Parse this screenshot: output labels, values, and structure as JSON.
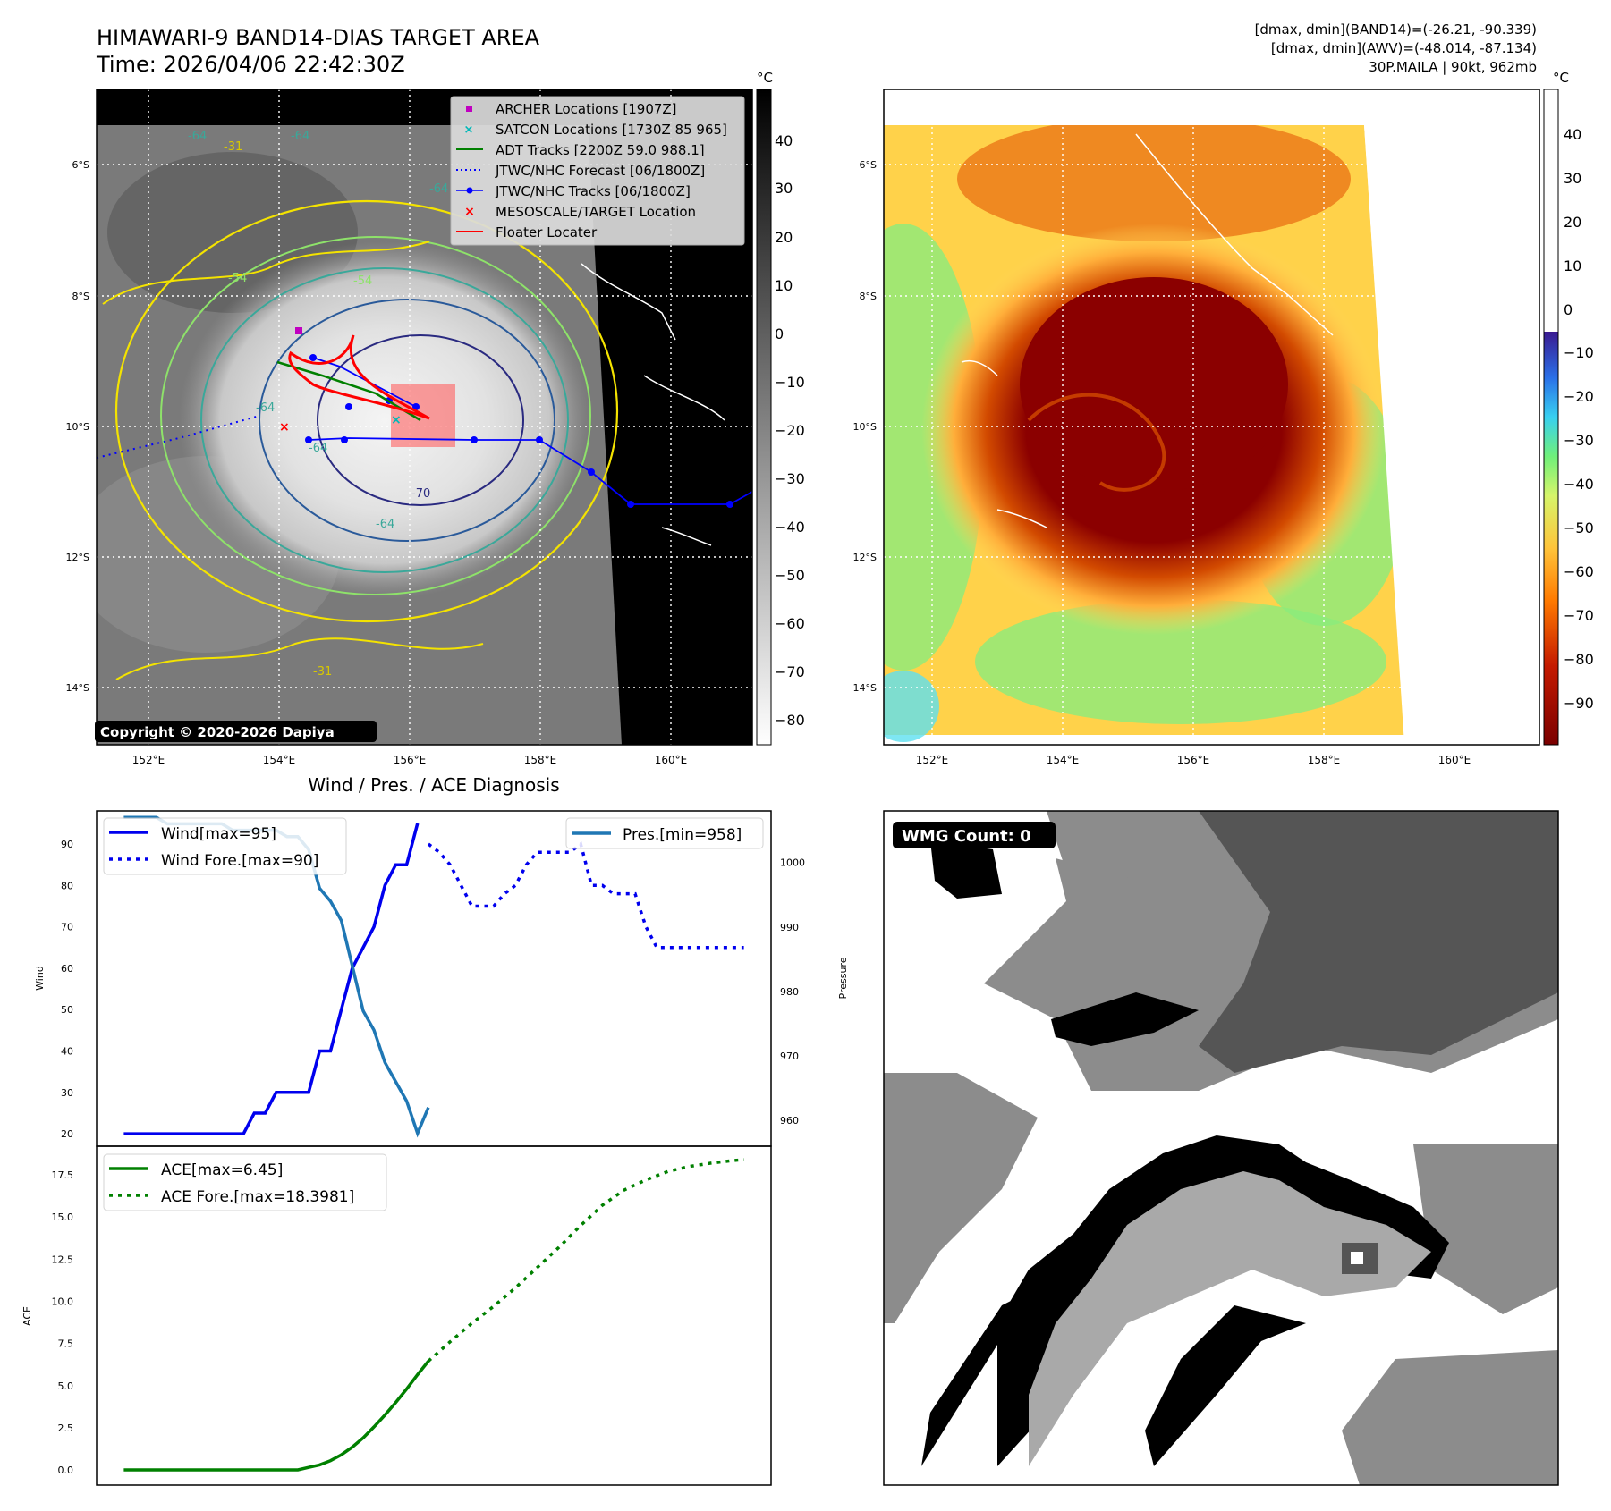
{
  "header": {
    "title": "HIMAWARI-9 BAND14-DIAS TARGET AREA",
    "time": "Time: 2026/04/06 22:42:30Z",
    "dmax_band14": "[dmax, dmin](BAND14)=(-26.21, -90.339)",
    "dmax_awv": "[dmax, dmin](AWV)=(-48.014, -87.134)",
    "storm": "30P.MAILA | 90kt, 962mb"
  },
  "map": {
    "lat_labels": [
      "6°S",
      "8°S",
      "10°S",
      "12°S",
      "14°S"
    ],
    "lon_labels": [
      "152°E",
      "154°E",
      "156°E",
      "158°E",
      "160°E"
    ],
    "legend": [
      {
        "label": "ARCHER Locations [1907Z]",
        "color": "#c000c0",
        "marker": "square"
      },
      {
        "label": "SATCON Locations [1730Z 85 965]",
        "color": "#00b8b8",
        "marker": "x"
      },
      {
        "label": "ADT Tracks [2200Z 59.0 988.1]",
        "color": "#008000",
        "marker": "line"
      },
      {
        "label": "JTWC/NHC Forecast [06/1800Z]",
        "color": "#0000ff",
        "marker": "dotted"
      },
      {
        "label": "JTWC/NHC Tracks [06/1800Z]",
        "color": "#0000ff",
        "marker": "line-dot"
      },
      {
        "label": "MESOSCALE/TARGET Location",
        "color": "#ff0000",
        "marker": "x"
      },
      {
        "label": "Floater Locater",
        "color": "#ff0000",
        "marker": "line"
      }
    ],
    "contour_labels": [
      "-64",
      "-64",
      "-31",
      "-54",
      "-64",
      "-54",
      "-64",
      "-64",
      "-70",
      "-64",
      "-31"
    ],
    "copyright": "Copyright © 2020-2026 Dapiya",
    "colorbar_unit": "°C",
    "colorbar_ticks_gray": [
      "40",
      "30",
      "20",
      "10",
      "0",
      "−10",
      "−20",
      "−30",
      "−40",
      "−50",
      "−60",
      "−70",
      "−80"
    ],
    "colorbar_ticks_awv": [
      "40",
      "30",
      "20",
      "10",
      "0",
      "−10",
      "−20",
      "−30",
      "−40",
      "−50",
      "−60",
      "−70",
      "−80",
      "−90"
    ]
  },
  "diagnosis": {
    "title": "Wind / Pres. / ACE Diagnosis",
    "wind_ylabel": "Wind",
    "pres_ylabel": "Pressure",
    "ace_ylabel": "ACE",
    "wind_ticks": [
      "90",
      "80",
      "70",
      "60",
      "50",
      "40",
      "30",
      "20"
    ],
    "pres_ticks": [
      "1000",
      "990",
      "980",
      "970",
      "960"
    ],
    "ace_ticks": [
      "17.5",
      "15.0",
      "12.5",
      "10.0",
      "7.5",
      "5.0",
      "2.5",
      "0.0"
    ],
    "legend_wind": "Wind[max=95]",
    "legend_wind_fore": "Wind Fore.[max=90]",
    "legend_pres": "Pres.[min=958]",
    "legend_ace": "ACE[max=6.45]",
    "legend_ace_fore": "ACE Fore.[max=18.3981]"
  },
  "wmg": {
    "badge": "WMG Count: 0"
  },
  "colors": {
    "wind": "#0000ee",
    "pressure": "#1f77b4",
    "ace": "#008000"
  },
  "chart_data": [
    {
      "type": "line",
      "title": "Wind / Pres. / ACE Diagnosis",
      "ylabel": "Wind",
      "ylim": [
        17,
        98
      ],
      "series": [
        {
          "name": "Wind[max=95]",
          "style": "solid",
          "x": [
            0,
            1,
            2,
            3,
            4,
            5,
            6,
            7,
            8,
            9,
            10,
            11,
            12,
            13,
            14,
            15,
            16,
            17,
            18,
            19,
            20,
            21,
            22,
            23,
            24,
            25,
            26,
            27
          ],
          "values": [
            20,
            20,
            20,
            20,
            20,
            20,
            20,
            20,
            20,
            20,
            20,
            20,
            25,
            25,
            30,
            30,
            30,
            30,
            40,
            40,
            50,
            60,
            65,
            70,
            80,
            85,
            85,
            95
          ]
        },
        {
          "name": "Wind Fore.[max=90]",
          "style": "dotted",
          "x": [
            28,
            29,
            30,
            31,
            32,
            33,
            34,
            35,
            36,
            37,
            38,
            39,
            40,
            41,
            42,
            43,
            44,
            45,
            46,
            47,
            48,
            49,
            50,
            51,
            52,
            53,
            54,
            55,
            56,
            57
          ],
          "values": [
            90,
            88,
            85,
            80,
            75,
            75,
            75,
            78,
            80,
            85,
            88,
            88,
            88,
            88,
            90,
            80,
            80,
            78,
            78,
            78,
            70,
            65,
            65,
            65,
            65,
            65,
            65,
            65,
            65,
            65
          ]
        }
      ]
    },
    {
      "type": "line",
      "ylabel": "Pressure",
      "ylim": [
        956,
        1008
      ],
      "series": [
        {
          "name": "Pres.[min=958]",
          "style": "solid",
          "x": [
            0,
            1,
            2,
            3,
            4,
            5,
            6,
            7,
            8,
            9,
            10,
            11,
            12,
            13,
            14,
            15,
            16,
            17,
            18,
            19,
            20,
            21,
            22,
            23,
            24,
            25,
            26,
            27,
            28
          ],
          "values": [
            1007,
            1007,
            1007,
            1007,
            1006,
            1006,
            1006,
            1006,
            1006,
            1006,
            1005,
            1005,
            1005,
            1005,
            1005,
            1004,
            1004,
            1002,
            996,
            994,
            991,
            984,
            977,
            974,
            969,
            966,
            963,
            958,
            962
          ]
        }
      ]
    },
    {
      "type": "line",
      "ylabel": "ACE",
      "ylim": [
        -0.9,
        19.2
      ],
      "series": [
        {
          "name": "ACE[max=6.45]",
          "style": "solid",
          "x": [
            0,
            1,
            2,
            3,
            4,
            5,
            6,
            7,
            8,
            9,
            10,
            11,
            12,
            13,
            14,
            15,
            16,
            17,
            18,
            19,
            20,
            21,
            22,
            23,
            24,
            25,
            26,
            27,
            28
          ],
          "values": [
            0,
            0,
            0,
            0,
            0,
            0,
            0,
            0,
            0,
            0,
            0,
            0,
            0,
            0,
            0,
            0,
            0,
            0.15,
            0.3,
            0.55,
            0.9,
            1.35,
            1.9,
            2.55,
            3.25,
            4.0,
            4.8,
            5.65,
            6.45
          ]
        },
        {
          "name": "ACE Fore.[max=18.3981]",
          "style": "dotted",
          "x": [
            28,
            30,
            32,
            34,
            36,
            38,
            40,
            42,
            44,
            46,
            48,
            50,
            52,
            54,
            56,
            57
          ],
          "values": [
            6.45,
            7.6,
            8.7,
            9.7,
            10.8,
            12.0,
            13.2,
            14.5,
            15.7,
            16.6,
            17.2,
            17.7,
            18.0,
            18.2,
            18.35,
            18.3981
          ]
        }
      ]
    }
  ]
}
